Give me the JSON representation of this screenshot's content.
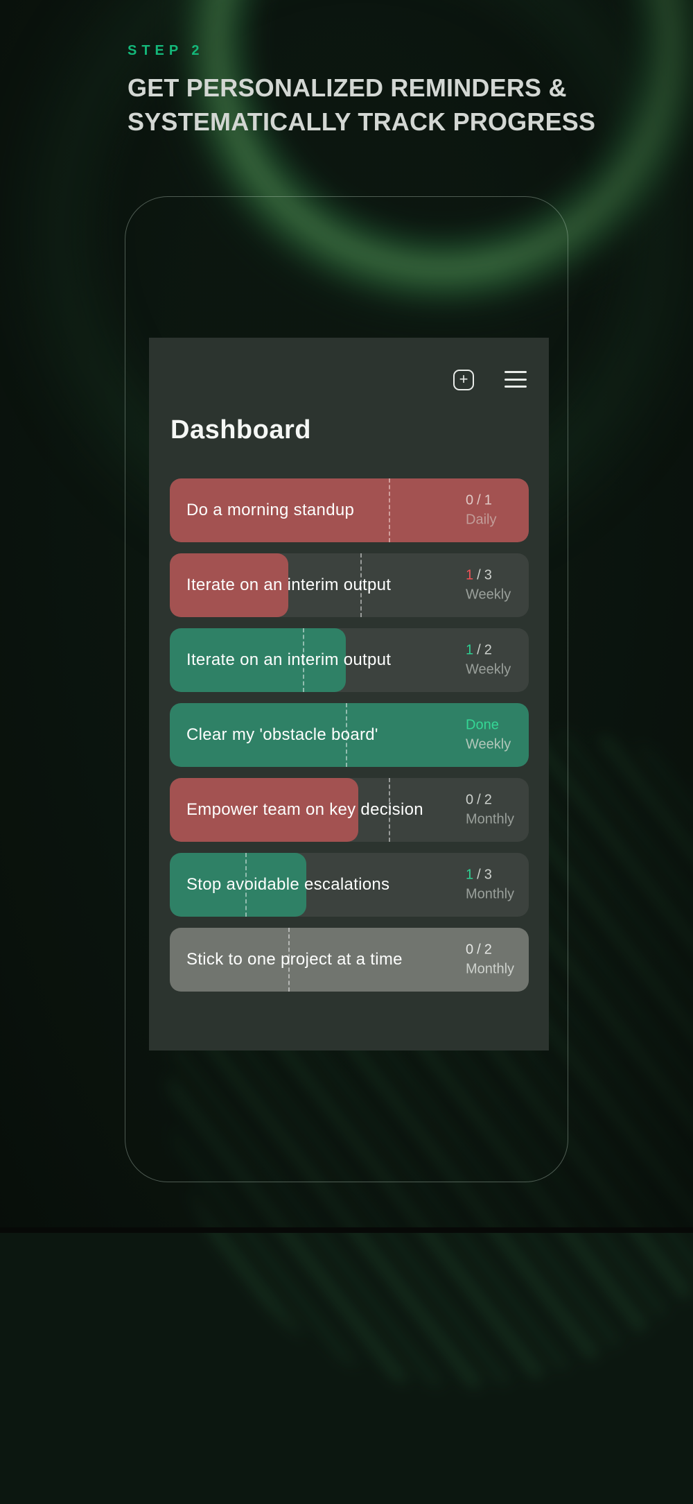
{
  "header": {
    "step_label": "STEP 2",
    "title_line1": "GET PERSONALIZED REMINDERS &",
    "title_line2": "SYSTEMATICALLY TRACK PROGRESS"
  },
  "app": {
    "title": "Dashboard",
    "toolbar": {
      "add_glyph": "+",
      "add_icon": "plus-icon",
      "menu_icon": "hamburger-menu-icon"
    },
    "fraction_separator": "/",
    "habits": [
      {
        "label": "Do a morning standup",
        "current": "0",
        "total": "1",
        "period": "Daily",
        "done": false,
        "fill_color": "red",
        "fill_percent": 100,
        "marker_percent": 61,
        "row_bg": "dark",
        "value_color": null
      },
      {
        "label": "Iterate on an interim output",
        "current": "1",
        "total": "3",
        "period": "Weekly",
        "done": false,
        "fill_color": "red",
        "fill_percent": 33,
        "marker_percent": 53,
        "row_bg": "dark",
        "value_color": "red"
      },
      {
        "label": "Iterate on an interim output",
        "current": "1",
        "total": "2",
        "period": "Weekly",
        "done": false,
        "fill_color": "green",
        "fill_percent": 49,
        "marker_percent": 37,
        "row_bg": "dark",
        "value_color": "green"
      },
      {
        "label": "Clear my 'obstacle board'",
        "done_label": "Done",
        "period": "Weekly",
        "done": true,
        "fill_color": "green",
        "fill_percent": 100,
        "marker_percent": 49,
        "row_bg": "dark",
        "value_color": "done"
      },
      {
        "label": "Empower team on key decision",
        "current": "0",
        "total": "2",
        "period": "Monthly",
        "done": false,
        "fill_color": "red",
        "fill_percent": 52.5,
        "marker_percent": 61,
        "row_bg": "dark",
        "value_color": null
      },
      {
        "label": "Stop avoidable escalations",
        "current": "1",
        "total": "3",
        "period": "Monthly",
        "done": false,
        "fill_color": "green",
        "fill_percent": 38,
        "marker_percent": 21,
        "row_bg": "dark",
        "value_color": "green"
      },
      {
        "label": "Stick to one project at a time",
        "current": "0",
        "total": "2",
        "period": "Monthly",
        "done": false,
        "fill_color": null,
        "fill_percent": 0,
        "marker_percent": 33,
        "row_bg": "light",
        "value_color": null
      }
    ]
  },
  "colors": {
    "accent_green": "#14b87a",
    "fill_red": "#a35251",
    "fill_green": "#2f8166",
    "row_dark": "#3c423e",
    "row_light": "#71756f",
    "card_bg": "#2c342f",
    "value_red": "#ef5156",
    "value_green": "#2ed092",
    "done_green": "#35d795"
  }
}
